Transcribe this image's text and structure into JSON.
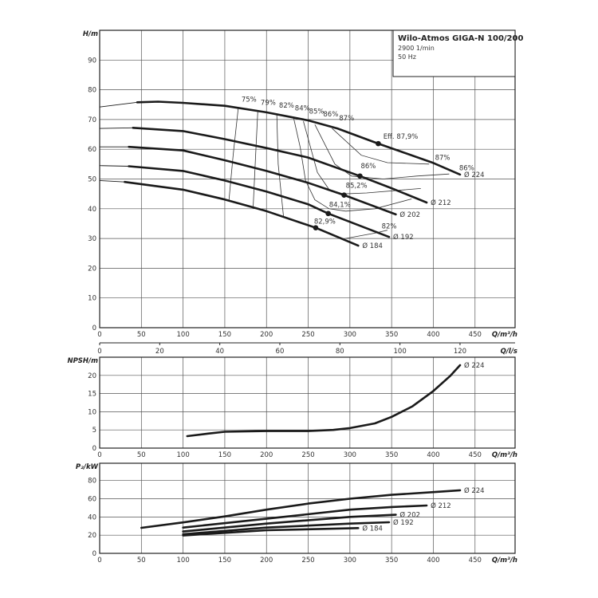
{
  "title_box": {
    "title": "Wilo-Atmos GIGA-N 100/200",
    "speed": "2900 1/min",
    "frequency": "50 Hz"
  },
  "chart_data": [
    {
      "id": "head",
      "type": "line",
      "ylabel": "H/m",
      "xlabel": "Q/m³/h",
      "xlim": [
        0,
        498
      ],
      "ylim": [
        0,
        100
      ],
      "x_ticks": [
        0,
        50,
        100,
        150,
        200,
        250,
        300,
        350,
        400,
        450
      ],
      "y_ticks": [
        0,
        10,
        20,
        30,
        40,
        50,
        60,
        70,
        80,
        90
      ],
      "grid": true,
      "secondary_x": {
        "label": "Q/l/s",
        "ticks": [
          0,
          20,
          40,
          60,
          80,
          100,
          120
        ],
        "m3h_per_unit": 3.6
      },
      "series": [
        {
          "name": "Ø 224",
          "thick_from": 45,
          "points": [
            [
              0,
              74.2
            ],
            [
              45,
              75.8
            ],
            [
              70,
              76
            ],
            [
              100,
              75.6
            ],
            [
              150,
              74.6
            ],
            [
              200,
              72.4
            ],
            [
              250,
              69.7
            ],
            [
              285,
              67
            ],
            [
              334,
              61.9
            ],
            [
              400,
              55.4
            ],
            [
              432,
              51.5
            ]
          ],
          "operating_point": [
            334,
            61.9
          ]
        },
        {
          "name": "Ø 212",
          "thick_from": 40,
          "points": [
            [
              0,
              67
            ],
            [
              40,
              67.2
            ],
            [
              100,
              66.1
            ],
            [
              150,
              63.4
            ],
            [
              200,
              60.4
            ],
            [
              250,
              57.2
            ],
            [
              312,
              51
            ],
            [
              350,
              46.9
            ],
            [
              392,
              42.1
            ]
          ],
          "operating_point": [
            312,
            51
          ]
        },
        {
          "name": "Ø 202",
          "thick_from": 35,
          "points": [
            [
              0,
              60.8
            ],
            [
              35,
              60.8
            ],
            [
              100,
              59.6
            ],
            [
              150,
              56.3
            ],
            [
              200,
              52.7
            ],
            [
              250,
              48.7
            ],
            [
              293,
              44.6
            ],
            [
              355,
              38.1
            ]
          ],
          "operating_point": [
            293,
            44.6
          ]
        },
        {
          "name": "Ø 192",
          "thick_from": 35,
          "points": [
            [
              0,
              54.5
            ],
            [
              35,
              54.3
            ],
            [
              100,
              52.7
            ],
            [
              150,
              49.5
            ],
            [
              200,
              45.8
            ],
            [
              250,
              41.5
            ],
            [
              274,
              38.4
            ],
            [
              347,
              30.5
            ]
          ],
          "operating_point": [
            274,
            38.4
          ]
        },
        {
          "name": "Ø 184",
          "thick_from": 30,
          "points": [
            [
              0,
              49.5
            ],
            [
              30,
              49
            ],
            [
              100,
              46.4
            ],
            [
              150,
              43.1
            ],
            [
              200,
              39.2
            ],
            [
              259,
              33.6
            ],
            [
              310,
              27.6
            ]
          ],
          "operating_point": [
            259,
            33.6
          ]
        }
      ],
      "iso_efficiency": [
        {
          "value": "75%",
          "points": [
            [
              166,
              73.6
            ],
            [
              160,
              58
            ],
            [
              155,
              43
            ]
          ]
        },
        {
          "value": "79%",
          "points": [
            [
              189.5,
              72.8
            ],
            [
              187,
              58
            ],
            [
              184,
              40.6
            ]
          ]
        },
        {
          "value": "82%",
          "points": [
            [
              212.4,
              71.5
            ],
            [
              214,
              55
            ],
            [
              220.4,
              37.3
            ]
          ]
        },
        {
          "value": "82%",
          "points": [
            [
              294.6,
              30
            ],
            [
              330,
              31.8
            ],
            [
              345,
              32.8
            ]
          ]
        },
        {
          "value": "84%",
          "points": [
            [
              232.5,
              70.6
            ],
            [
              240.4,
              60.7
            ],
            [
              246.8,
              49.5
            ],
            [
              258,
              43
            ],
            [
              275,
              40
            ],
            [
              295,
              39.2
            ],
            [
              330,
              40
            ],
            [
              374,
              43.3
            ]
          ]
        },
        {
          "value": "85%",
          "points": [
            [
              244.2,
              69.4
            ],
            [
              261,
              52.2
            ],
            [
              275,
              46.5
            ],
            [
              292,
              45
            ],
            [
              320,
              45.3
            ],
            [
              385,
              46.8
            ]
          ]
        },
        {
          "value": "86%",
          "points": [
            [
              258,
              68.3
            ],
            [
              282,
              55
            ],
            [
              302,
              51
            ],
            [
              340,
              50
            ],
            [
              380,
              51
            ],
            [
              419,
              51.7
            ]
          ]
        },
        {
          "value": "87%",
          "points": [
            [
              278.6,
              67
            ],
            [
              313.6,
              58
            ],
            [
              345,
              55.5
            ],
            [
              395,
              55
            ]
          ]
        }
      ],
      "annotations": [
        {
          "text": "75%",
          "x": 170,
          "y": 76
        },
        {
          "text": "79%",
          "x": 193,
          "y": 75
        },
        {
          "text": "82%",
          "x": 215,
          "y": 74
        },
        {
          "text": "84%",
          "x": 234,
          "y": 73
        },
        {
          "text": "85%",
          "x": 251,
          "y": 72
        },
        {
          "text": "86%",
          "x": 268,
          "y": 71
        },
        {
          "text": "87%",
          "x": 287,
          "y": 69.7
        },
        {
          "text": "Eff. 87,9%",
          "x": 340,
          "y": 63.5
        },
        {
          "text": "87%",
          "x": 402,
          "y": 56.5
        },
        {
          "text": "86%",
          "x": 431,
          "y": 53
        },
        {
          "text": "86%",
          "x": 313,
          "y": 53.6
        },
        {
          "text": "85,2%",
          "x": 295,
          "y": 47.1
        },
        {
          "text": "84,1%",
          "x": 275,
          "y": 40.6
        },
        {
          "text": "82,9%",
          "x": 257,
          "y": 35
        },
        {
          "text": "82%",
          "x": 338,
          "y": 33.4
        }
      ]
    },
    {
      "id": "npsh",
      "type": "line",
      "ylabel": "NPSH/m",
      "xlabel": "Q/m³/h",
      "xlim": [
        0,
        498
      ],
      "ylim": [
        0,
        25
      ],
      "x_ticks": [
        0,
        50,
        100,
        150,
        200,
        250,
        300,
        350,
        400,
        450
      ],
      "y_ticks": [
        0,
        5,
        10,
        15,
        20
      ],
      "grid": true,
      "series": [
        {
          "name": "Ø 224",
          "thick_from": 0,
          "points": [
            [
              105,
              3.3
            ],
            [
              130,
              4
            ],
            [
              150,
              4.5
            ],
            [
              200,
              4.7
            ],
            [
              250,
              4.7
            ],
            [
              280,
              5
            ],
            [
              300,
              5.5
            ],
            [
              330,
              6.8
            ],
            [
              350,
              8.6
            ],
            [
              375,
              11.5
            ],
            [
              400,
              15.7
            ],
            [
              420,
              19.8
            ],
            [
              432,
              22.8
            ]
          ]
        }
      ]
    },
    {
      "id": "power",
      "type": "line",
      "ylabel": "P₂/kW",
      "xlabel": "Q/m³/h",
      "xlim": [
        0,
        498
      ],
      "ylim": [
        0,
        99
      ],
      "x_ticks": [
        0,
        50,
        100,
        150,
        200,
        250,
        300,
        350,
        400,
        450
      ],
      "y_ticks": [
        0,
        20,
        40,
        60,
        80
      ],
      "grid": true,
      "series": [
        {
          "name": "Ø 224",
          "thick_from": 45,
          "points": [
            [
              0,
              22.2
            ],
            [
              50,
              28
            ],
            [
              100,
              34
            ],
            [
              150,
              40.6
            ],
            [
              200,
              48
            ],
            [
              250,
              54.7
            ],
            [
              300,
              60
            ],
            [
              350,
              64.3
            ],
            [
              400,
              67.3
            ],
            [
              432,
              69.3
            ]
          ]
        },
        {
          "name": "Ø 212",
          "thick_from": 40,
          "points": [
            [
              0,
              18.7
            ],
            [
              100,
              28.3
            ],
            [
              200,
              38
            ],
            [
              300,
              48
            ],
            [
              350,
              50.9
            ],
            [
              392,
              52.6
            ]
          ]
        },
        {
          "name": "Ø 202",
          "thick_from": 35,
          "points": [
            [
              0,
              16.4
            ],
            [
              100,
              24
            ],
            [
              200,
              32.7
            ],
            [
              300,
              40
            ],
            [
              355,
              42.4
            ]
          ]
        },
        {
          "name": "Ø 192",
          "thick_from": 35,
          "points": [
            [
              0,
              14.3
            ],
            [
              100,
              21
            ],
            [
              200,
              28.3
            ],
            [
              300,
              32.7
            ],
            [
              347,
              34.2
            ]
          ]
        },
        {
          "name": "Ø 184",
          "thick_from": 30,
          "points": [
            [
              0,
              11.7
            ],
            [
              100,
              19.6
            ],
            [
              200,
              25.4
            ],
            [
              300,
              27.5
            ],
            [
              310,
              27.8
            ]
          ]
        }
      ]
    }
  ]
}
